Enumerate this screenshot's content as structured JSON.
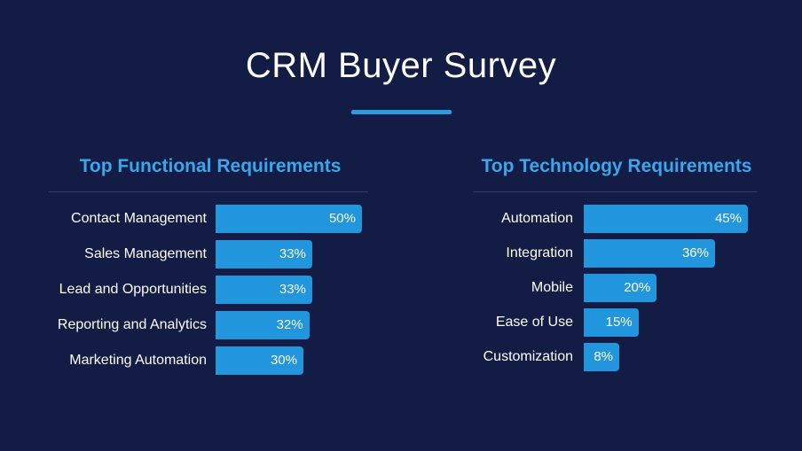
{
  "title": "CRM Buyer Survey",
  "colors": {
    "background": "#121c45",
    "accent": "#2a9ce0",
    "bar": "#2196dc",
    "heading": "#3aa6ec"
  },
  "chart_data": [
    {
      "type": "bar",
      "orientation": "horizontal",
      "title": "Top Functional Requirements",
      "categories": [
        "Contact Management",
        "Sales Management",
        "Lead and Opportunities",
        "Reporting and Analytics",
        "Marketing Automation"
      ],
      "values": [
        50,
        33,
        33,
        32,
        30
      ],
      "labels": [
        "50%",
        "33%",
        "33%",
        "32%",
        "30%"
      ],
      "unit": "%",
      "xlim": [
        0,
        50
      ]
    },
    {
      "type": "bar",
      "orientation": "horizontal",
      "title": "Top Technology Requirements",
      "categories": [
        "Automation",
        "Integration",
        "Mobile",
        "Ease of Use",
        "Customization"
      ],
      "values": [
        45,
        36,
        20,
        15,
        8
      ],
      "labels": [
        "45%",
        "36%",
        "20%",
        "15%",
        "8%"
      ],
      "unit": "%",
      "xlim": [
        0,
        45
      ]
    }
  ]
}
